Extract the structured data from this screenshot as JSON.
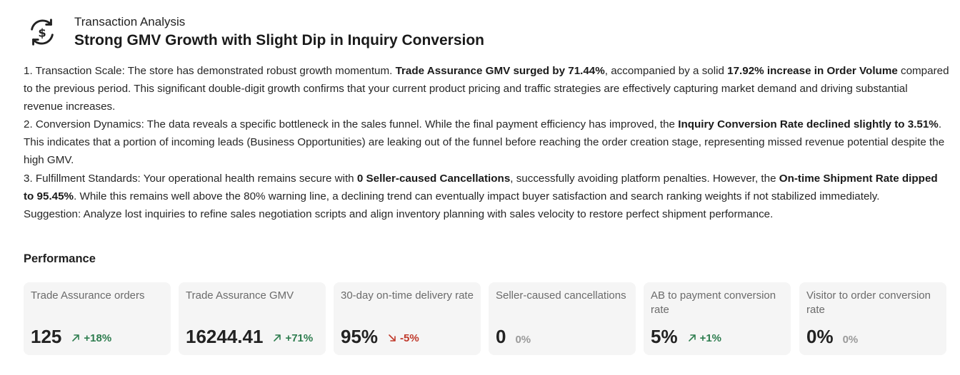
{
  "header": {
    "kicker": "Transaction Analysis",
    "title": "Strong GMV Growth with Slight Dip in Inquiry Conversion",
    "icon": "dollar-refresh-icon"
  },
  "analysis": {
    "p1": {
      "t1": "1. Transaction Scale: The store has demonstrated robust growth momentum. ",
      "b1": "Trade Assurance GMV surged by 71.44%",
      "t2": ", accompanied by a solid ",
      "b2": "17.92% increase in Order Volume",
      "t3": " compared to the previous period. This significant double-digit growth confirms that your current product pricing and traffic strategies are effectively capturing market demand and driving substantial revenue increases."
    },
    "p2": {
      "t1": "2. Conversion Dynamics: The data reveals a specific bottleneck in the sales funnel. While the final payment efficiency has improved, the ",
      "b1": "Inquiry Conversion Rate declined slightly to 3.51%",
      "t2": ". This indicates that a portion of incoming leads (Business Opportunities) are leaking out of the funnel before reaching the order creation stage, representing missed revenue potential despite the high GMV."
    },
    "p3": {
      "t1": "3. Fulfillment Standards: Your operational health remains secure with ",
      "b1": "0 Seller-caused Cancellations",
      "t2": ", successfully avoiding platform penalties. However, the ",
      "b2": "On-time Shipment Rate dipped to 95.45%",
      "t3": ". While this remains well above the 80% warning line, a declining trend can eventually impact buyer satisfaction and search ranking weights if not stabilized immediately."
    },
    "suggestion": "Suggestion: Analyze lost inquiries to refine sales negotiation scripts and align inventory planning with sales velocity to restore perfect shipment performance."
  },
  "performance": {
    "title": "Performance",
    "colors": {
      "up": "#2e7d4f",
      "down": "#c0392b",
      "flat": "#9a9a9a"
    },
    "cards": [
      {
        "label": "Trade Assurance orders",
        "value": "125",
        "change": "+18%",
        "trend": "up"
      },
      {
        "label": "Trade Assurance GMV",
        "value": "16244.41",
        "change": "+71%",
        "trend": "up"
      },
      {
        "label": "30-day on-time delivery rate",
        "value": "95%",
        "change": "-5%",
        "trend": "down"
      },
      {
        "label": "Seller-caused cancellations",
        "value": "0",
        "change": "0%",
        "trend": "flat"
      },
      {
        "label": "AB to payment conversion rate",
        "value": "5%",
        "change": "+1%",
        "trend": "up"
      },
      {
        "label": "Visitor to order conversion rate",
        "value": "0%",
        "change": "0%",
        "trend": "flat"
      }
    ]
  }
}
